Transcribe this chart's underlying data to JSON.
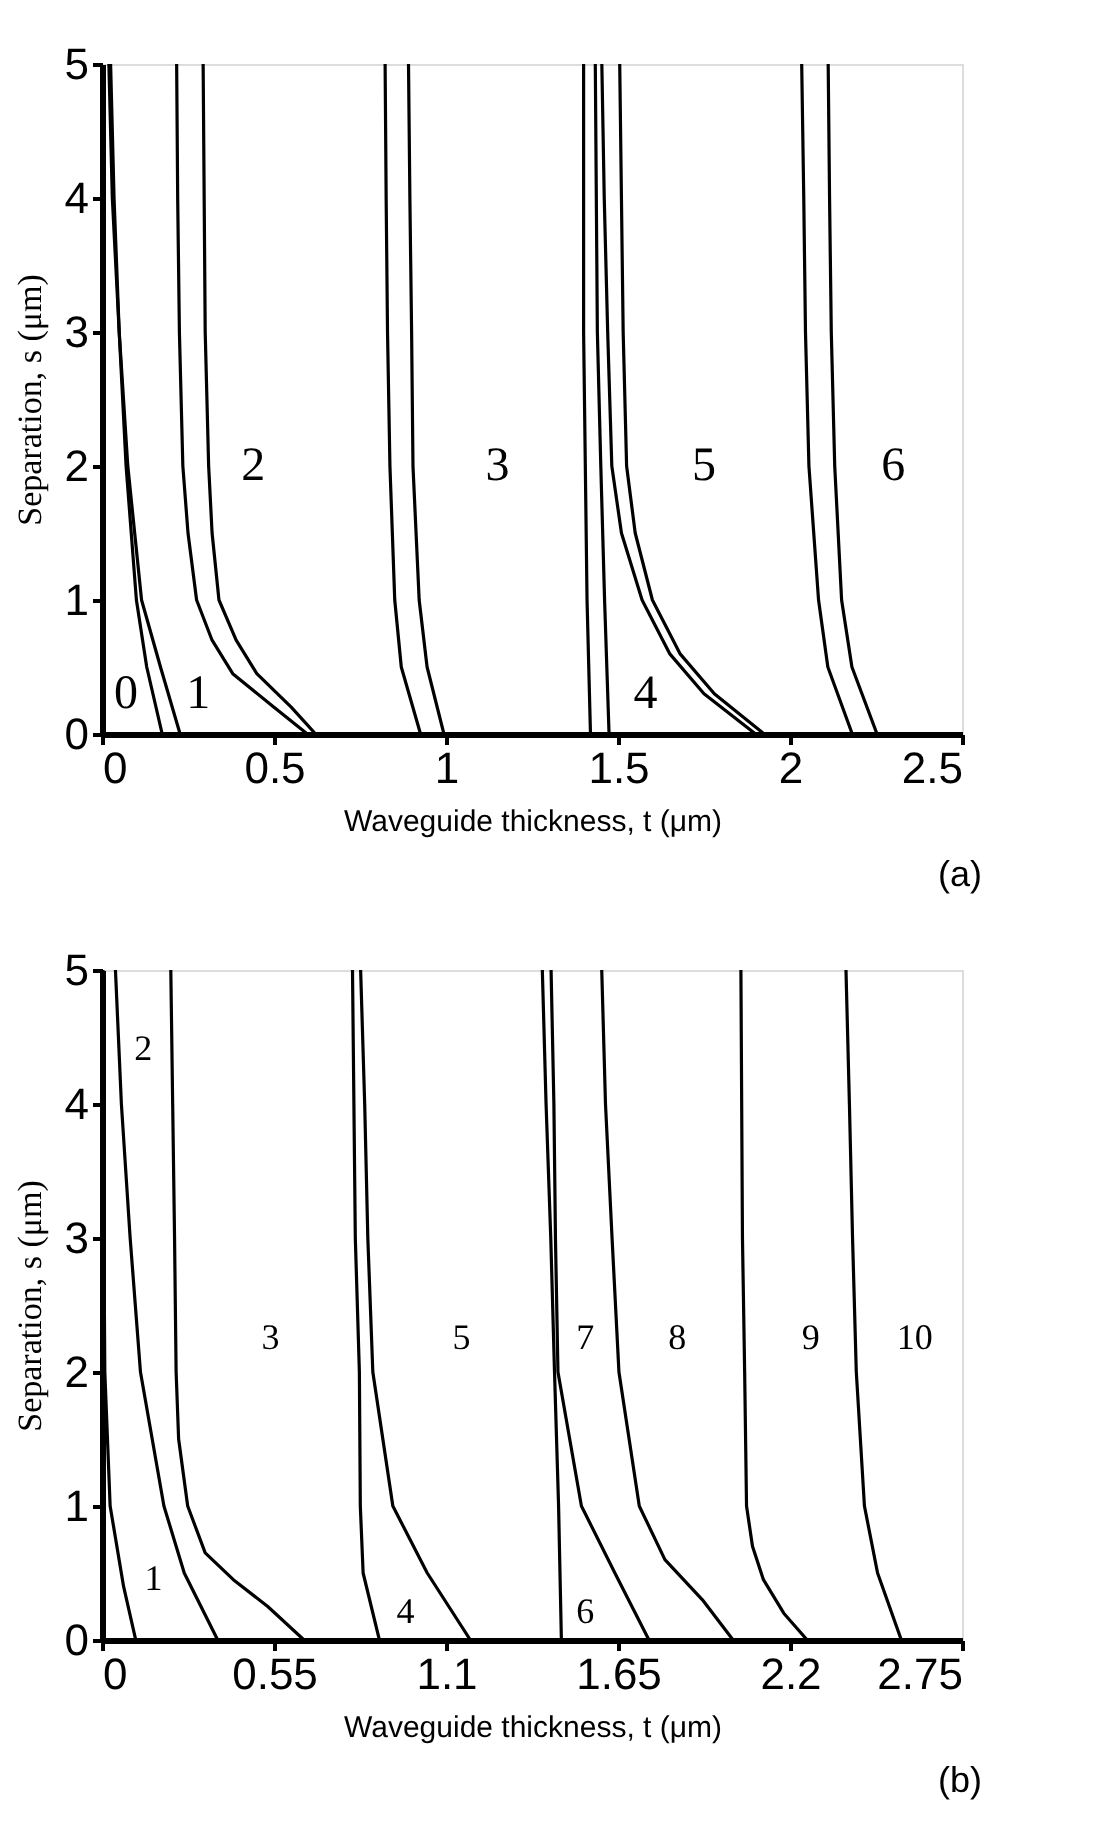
{
  "chart_data": [
    {
      "type": "line",
      "xlabel": "Waveguide thickness, t (μm)",
      "ylabel": "Separation, s (μm)",
      "xlim": [
        0,
        2.5
      ],
      "ylim": [
        0,
        5
      ],
      "xticks": [
        0,
        0.5,
        1,
        1.5,
        2,
        2.5
      ],
      "yticks": [
        0,
        1,
        2,
        3,
        4,
        5
      ],
      "grid": false,
      "legend": false,
      "series": [
        {
          "color": "#000000",
          "x": [
            0.02,
            0.03,
            0.05,
            0.07,
            0.1,
            0.13,
            0.175
          ],
          "values": [
            5,
            4,
            3,
            2,
            1,
            0.5,
            0
          ]
        },
        {
          "color": "#000000",
          "x": [
            0.025,
            0.035,
            0.05,
            0.075,
            0.115,
            0.17,
            0.227
          ],
          "values": [
            5,
            4,
            3,
            2,
            1,
            0.5,
            0
          ]
        },
        {
          "color": "#000000",
          "x": [
            0.217,
            0.22,
            0.225,
            0.235,
            0.25,
            0.275,
            0.32,
            0.38,
            0.5,
            0.597
          ],
          "values": [
            5,
            4,
            3,
            2,
            1.5,
            1,
            0.7,
            0.45,
            0.2,
            0
          ]
        },
        {
          "color": "#000000",
          "x": [
            0.294,
            0.297,
            0.3,
            0.31,
            0.32,
            0.34,
            0.39,
            0.45,
            0.55,
            0.621
          ],
          "values": [
            5,
            4,
            3,
            2,
            1.5,
            1,
            0.7,
            0.45,
            0.2,
            0
          ]
        },
        {
          "color": "#000000",
          "x": [
            0.823,
            0.826,
            0.83,
            0.837,
            0.851,
            0.87,
            0.926
          ],
          "values": [
            5,
            4,
            3,
            2,
            1,
            0.5,
            0
          ]
        },
        {
          "color": "#000000",
          "x": [
            0.891,
            0.895,
            0.9,
            0.904,
            0.922,
            0.945,
            0.994
          ],
          "values": [
            5,
            4,
            3,
            2,
            1,
            0.5,
            0
          ]
        },
        {
          "color": "#000000",
          "x": [
            1.4,
            1.4,
            1.41,
            1.42
          ],
          "values": [
            5,
            3,
            1,
            0
          ]
        },
        {
          "color": "#000000",
          "x": [
            1.434,
            1.44,
            1.45,
            1.461,
            1.474
          ],
          "values": [
            5,
            3,
            2,
            1,
            0
          ]
        },
        {
          "color": "#000000",
          "x": [
            1.453,
            1.46,
            1.47,
            1.482,
            1.51,
            1.57,
            1.65,
            1.75,
            1.9
          ],
          "values": [
            5,
            4,
            3,
            2,
            1.5,
            1,
            0.6,
            0.3,
            0
          ]
        },
        {
          "color": "#000000",
          "x": [
            1.505,
            1.51,
            1.515,
            1.525,
            1.55,
            1.6,
            1.68,
            1.78,
            1.925
          ],
          "values": [
            5,
            4,
            3,
            2,
            1.5,
            1,
            0.6,
            0.3,
            0
          ]
        },
        {
          "color": "#000000",
          "x": [
            2.034,
            2.04,
            2.045,
            2.055,
            2.083,
            2.11,
            2.181
          ],
          "values": [
            5,
            4,
            3,
            2,
            1,
            0.5,
            0
          ]
        },
        {
          "color": "#000000",
          "x": [
            2.111,
            2.115,
            2.12,
            2.13,
            2.15,
            2.18,
            2.253
          ],
          "values": [
            5,
            4,
            3,
            2,
            1,
            0.5,
            0
          ]
        }
      ],
      "annotations": [
        "0",
        "1",
        "2",
        "3",
        "4",
        "5",
        "6",
        "(a)"
      ]
    },
    {
      "type": "line",
      "xlabel": "Waveguide thickness, t (μm)",
      "ylabel": "Separation, s (μm)",
      "xlim": [
        0,
        2.75
      ],
      "ylim": [
        0,
        5
      ],
      "xticks": [
        0,
        0.55,
        1.1,
        1.65,
        2.2,
        2.75
      ],
      "yticks": [
        0,
        1,
        2,
        3,
        4,
        5
      ],
      "grid": false,
      "legend": false,
      "series": [
        {
          "color": "#000000",
          "x": [
            0.003,
            0.006,
            0.009,
            0.026,
            0.069,
            0.108
          ],
          "values": [
            5,
            3,
            2,
            1,
            0.4,
            0
          ]
        },
        {
          "color": "#000000",
          "x": [
            0.043,
            0.062,
            0.09,
            0.123,
            0.198,
            0.263,
            0.37
          ],
          "values": [
            5,
            4,
            3,
            2,
            1,
            0.5,
            0
          ]
        },
        {
          "color": "#000000",
          "x": [
            0.22,
            0.226,
            0.232,
            0.237,
            0.245,
            0.274,
            0.33,
            0.42,
            0.53,
            0.646
          ],
          "values": [
            5,
            4,
            3,
            2,
            1.5,
            1,
            0.65,
            0.45,
            0.25,
            0
          ]
        },
        {
          "color": "#000000",
          "x": [
            0.801,
            0.81,
            0.823,
            0.826,
            0.835,
            0.887
          ],
          "values": [
            5,
            3,
            2,
            1,
            0.5,
            0
          ]
        },
        {
          "color": "#000000",
          "x": [
            0.827,
            0.84,
            0.85,
            0.866,
            0.93,
            1.04,
            1.178
          ],
          "values": [
            5,
            4,
            3,
            2,
            1,
            0.5,
            0
          ]
        },
        {
          "color": "#000000",
          "x": [
            1.408,
            1.42,
            1.435,
            1.447,
            1.46,
            1.469
          ],
          "values": [
            5,
            4,
            3,
            2,
            1,
            0
          ]
        },
        {
          "color": "#000000",
          "x": [
            1.436,
            1.445,
            1.45,
            1.458,
            1.533,
            1.64,
            1.749
          ],
          "values": [
            5,
            4,
            3,
            2,
            1,
            0.5,
            0
          ]
        },
        {
          "color": "#000000",
          "x": [
            1.598,
            1.61,
            1.631,
            1.653,
            1.718,
            1.8,
            1.92,
            2.018
          ],
          "values": [
            5,
            4,
            3,
            2,
            1,
            0.6,
            0.3,
            0
          ]
        },
        {
          "color": "#000000",
          "x": [
            2.043,
            2.048,
            2.055,
            2.061,
            2.08,
            2.115,
            2.18,
            2.255
          ],
          "values": [
            5,
            3,
            2,
            1,
            0.7,
            0.45,
            0.2,
            0
          ]
        },
        {
          "color": "#000000",
          "x": [
            2.379,
            2.39,
            2.4,
            2.412,
            2.438,
            2.48,
            2.556
          ],
          "values": [
            5,
            4,
            3,
            2,
            1,
            0.5,
            0
          ]
        }
      ],
      "annotations": [
        "1",
        "2",
        "3",
        "4",
        "5",
        "6",
        "7",
        "8",
        "9",
        "10",
        "(b)"
      ]
    }
  ]
}
